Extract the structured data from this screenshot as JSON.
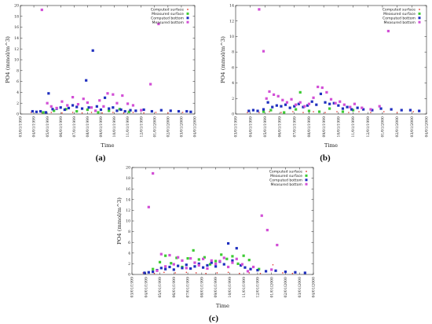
{
  "legend_labels": [
    "Computed surface",
    "Measured surface",
    "Computed bottom",
    "Measured bottom"
  ],
  "colors": {
    "computed_surface": "#e0302a",
    "measured_surface": "#3ecb34",
    "computed_bottom": "#1f2fbf",
    "measured_bottom": "#d24fd6",
    "axis": "#222222"
  },
  "chart_data": [
    {
      "panel": "(a)",
      "type": "scatter",
      "ylabel": "PO4 (mmol/m^3)",
      "xlabel": "Time",
      "x_tick_labels": [
        "03/01/1999",
        "04/01/1999",
        "05/01/1999",
        "06/01/1999",
        "07/01/1999",
        "08/01/1999",
        "09/01/1999",
        "10/01/1999",
        "11/01/1999",
        "12/01/1999",
        "01/01/2000",
        "02/01/2000",
        "03/01/2000",
        "04/01/2000"
      ],
      "xlim": [
        0,
        13
      ],
      "ylim": [
        0,
        20
      ],
      "y_ticks": [
        0,
        2,
        4,
        6,
        8,
        10,
        12,
        14,
        16,
        18,
        20
      ],
      "legend": "top-right",
      "series": [
        {
          "name": "Computed surface",
          "marker": "point",
          "x": [
            0.8,
            1.6,
            2.3,
            3.1,
            3.9,
            4.6,
            5.3,
            6.1,
            6.9,
            7.7,
            8.4,
            9.2,
            10.1,
            11.0,
            12.1
          ],
          "y": [
            0.3,
            0.2,
            0.3,
            0.2,
            0.3,
            0.2,
            0.3,
            0.2,
            0.3,
            0.2,
            0.3,
            0.2,
            0.3,
            0.2,
            0.3
          ]
        },
        {
          "name": "Measured surface",
          "x": [
            1.7,
            2.5,
            3.4,
            4.2,
            5.0,
            5.8,
            6.6,
            7.4,
            8.1
          ],
          "y": [
            0.3,
            0.6,
            0.9,
            0.5,
            0.8,
            0.3,
            0.6,
            0.9,
            0.4
          ]
        },
        {
          "name": "Computed bottom",
          "x": [
            0.9,
            1.2,
            1.5,
            1.9,
            2.1,
            2.4,
            2.7,
            3.0,
            3.3,
            3.6,
            3.9,
            4.2,
            4.6,
            4.9,
            5.1,
            5.4,
            5.7,
            6.0,
            6.3,
            6.6,
            6.9,
            7.2,
            7.5,
            7.8,
            8.2,
            8.6,
            9.2,
            9.8,
            10.5,
            11.2,
            11.8,
            12.4,
            12.7
          ],
          "y": [
            0.5,
            0.4,
            0.5,
            0.3,
            3.8,
            0.9,
            1.0,
            1.2,
            0.8,
            1.1,
            1.6,
            1.3,
            1.0,
            6.2,
            1.2,
            11.7,
            1.4,
            0.8,
            3.0,
            1.0,
            1.2,
            0.6,
            0.8,
            0.5,
            0.7,
            0.6,
            0.8,
            0.5,
            0.7,
            0.6,
            0.5,
            0.5,
            0.4
          ]
        },
        {
          "name": "Measured bottom",
          "x": [
            1.6,
            2.0,
            2.3,
            2.7,
            3.1,
            3.5,
            3.9,
            4.3,
            4.7,
            5.0,
            5.3,
            5.6,
            5.9,
            6.2,
            6.5,
            6.9,
            7.2,
            7.6,
            8.0,
            8.4,
            9.0,
            9.7,
            10.3
          ],
          "y": [
            19.2,
            2.0,
            1.4,
            1.1,
            2.3,
            1.6,
            3.1,
            1.8,
            2.8,
            2.1,
            1.2,
            0.6,
            2.5,
            1.4,
            3.8,
            3.6,
            2.0,
            3.4,
            1.9,
            1.6,
            0.7,
            5.5,
            16.6
          ]
        }
      ]
    },
    {
      "panel": "(b)",
      "type": "scatter",
      "ylabel": "PO4 (mmol/m^3)",
      "xlabel": "Time",
      "x_tick_labels": [
        "03/01/1999",
        "04/01/1999",
        "05/01/1999",
        "06/01/1999",
        "07/01/1999",
        "08/01/1999",
        "09/01/1999",
        "10/01/1999",
        "11/01/1999",
        "12/01/1999",
        "01/01/2000",
        "02/01/2000",
        "03/01/2000",
        "04/01/2000"
      ],
      "xlim": [
        0,
        13
      ],
      "ylim": [
        0,
        14
      ],
      "y_ticks": [
        0,
        2,
        4,
        6,
        8,
        10,
        12,
        14
      ],
      "legend": "top-right",
      "series": [
        {
          "name": "Computed surface",
          "marker": "point",
          "x": [
            0.8,
            1.6,
            2.3,
            3.1,
            3.9,
            4.6,
            5.3,
            6.1,
            6.9,
            7.7,
            8.4,
            9.2,
            10.1,
            11.0,
            12.1
          ],
          "y": [
            0.2,
            0.2,
            0.3,
            0.2,
            0.3,
            0.2,
            0.3,
            0.2,
            0.3,
            0.2,
            0.3,
            0.2,
            0.3,
            0.2,
            0.3
          ]
        },
        {
          "name": "Measured surface",
          "x": [
            1.9,
            2.4,
            3.3,
            4.1,
            4.4,
            5.0,
            5.7,
            6.4,
            7.3,
            8.0
          ],
          "y": [
            0.3,
            0.5,
            0.2,
            0.6,
            2.8,
            0.4,
            0.3,
            0.7,
            0.3,
            0.5
          ]
        },
        {
          "name": "Computed bottom",
          "x": [
            0.9,
            1.2,
            1.5,
            1.9,
            2.2,
            2.5,
            2.8,
            3.1,
            3.4,
            3.7,
            4.0,
            4.3,
            4.6,
            4.9,
            5.2,
            5.5,
            5.8,
            6.1,
            6.4,
            6.7,
            7.0,
            7.3,
            7.6,
            7.9,
            8.3,
            8.7,
            9.3,
            9.9,
            10.6,
            11.3,
            11.9,
            12.5
          ],
          "y": [
            0.4,
            0.5,
            0.4,
            0.6,
            1.5,
            0.9,
            1.1,
            1.0,
            1.2,
            0.8,
            1.0,
            1.3,
            0.9,
            1.1,
            1.6,
            1.2,
            2.6,
            1.5,
            1.3,
            1.4,
            1.1,
            0.7,
            0.9,
            0.6,
            0.8,
            0.6,
            0.5,
            0.7,
            0.6,
            0.5,
            0.5,
            0.4
          ]
        },
        {
          "name": "Measured bottom",
          "x": [
            1.6,
            1.9,
            2.1,
            2.3,
            2.6,
            2.9,
            3.2,
            3.5,
            3.8,
            4.1,
            4.4,
            4.7,
            5.0,
            5.3,
            5.6,
            5.9,
            6.2,
            6.5,
            6.8,
            7.1,
            7.4,
            7.8,
            8.1,
            8.6,
            9.2,
            9.8,
            10.4
          ],
          "y": [
            13.5,
            8.1,
            2.0,
            2.9,
            2.5,
            2.3,
            1.8,
            1.5,
            1.9,
            1.2,
            1.5,
            1.0,
            1.3,
            2.1,
            3.5,
            3.4,
            2.8,
            1.9,
            1.4,
            1.6,
            1.2,
            0.9,
            1.3,
            0.8,
            0.6,
            1.0,
            10.7
          ]
        }
      ]
    },
    {
      "panel": "(c)",
      "type": "scatter",
      "ylabel": "PO4 (mmol/m^3)",
      "xlabel": "Time",
      "x_tick_labels": [
        "03/01/1999",
        "04/01/1999",
        "05/01/1999",
        "06/01/1999",
        "07/01/1999",
        "08/01/1999",
        "09/01/1999",
        "10/01/1999",
        "11/01/1999",
        "12/01/1999",
        "01/01/2000",
        "02/01/2000",
        "03/01/2000",
        "04/01/2000"
      ],
      "xlim": [
        0,
        13
      ],
      "ylim": [
        0,
        20
      ],
      "y_ticks": [
        0,
        2,
        4,
        6,
        8,
        10,
        12,
        14,
        16,
        18,
        20
      ],
      "legend": "top-right",
      "series": [
        {
          "name": "Computed surface",
          "marker": "point",
          "x": [
            0.8,
            1.6,
            2.3,
            3.1,
            3.9,
            4.6,
            5.3,
            6.1,
            6.9,
            7.7,
            8.4,
            9.2,
            10.1,
            10.8,
            11.5
          ],
          "y": [
            0.3,
            0.2,
            0.4,
            0.3,
            0.4,
            0.3,
            0.2,
            0.3,
            0.4,
            0.2,
            0.3,
            0.2,
            1.8,
            0.3,
            0.2
          ]
        },
        {
          "name": "Measured surface",
          "x": [
            1.5,
            2.0,
            2.4,
            2.8,
            3.2,
            3.6,
            4.0,
            4.4,
            4.8,
            5.2,
            5.6,
            6.0,
            6.4,
            6.8,
            7.2,
            7.6,
            8.0,
            8.4,
            9.1
          ],
          "y": [
            1.0,
            2.3,
            3.5,
            2.1,
            3.1,
            1.4,
            3.0,
            4.5,
            2.8,
            3.2,
            1.9,
            2.5,
            3.7,
            2.9,
            3.4,
            2.0,
            3.5,
            2.7,
            1.0
          ]
        },
        {
          "name": "Computed bottom",
          "x": [
            0.9,
            1.2,
            1.5,
            1.8,
            2.1,
            2.4,
            2.7,
            3.0,
            3.3,
            3.6,
            3.9,
            4.2,
            4.5,
            4.8,
            5.1,
            5.4,
            5.7,
            6.0,
            6.3,
            6.6,
            6.9,
            7.2,
            7.5,
            7.8,
            8.1,
            8.5,
            9.0,
            9.6,
            10.3,
            11.0,
            11.7,
            12.4
          ],
          "y": [
            0.3,
            0.4,
            0.5,
            0.8,
            1.2,
            1.0,
            1.4,
            0.9,
            1.6,
            1.2,
            1.8,
            1.1,
            1.5,
            2.0,
            1.3,
            1.7,
            2.2,
            1.5,
            2.4,
            1.9,
            5.8,
            2.6,
            4.9,
            1.7,
            1.3,
            1.0,
            0.8,
            0.6,
            0.7,
            0.5,
            0.4,
            0.3
          ]
        },
        {
          "name": "Measured bottom",
          "x": [
            1.2,
            1.5,
            1.8,
            2.1,
            2.4,
            2.7,
            3.0,
            3.3,
            3.6,
            3.9,
            4.2,
            4.5,
            4.8,
            5.1,
            5.4,
            5.7,
            6.0,
            6.3,
            6.6,
            6.9,
            7.2,
            7.5,
            7.9,
            8.3,
            8.7,
            9.3,
            9.7,
            10.0,
            10.4
          ],
          "y": [
            12.6,
            18.9,
            0.7,
            3.8,
            1.5,
            3.6,
            1.9,
            3.2,
            2.6,
            1.2,
            3.0,
            2.2,
            1.7,
            2.9,
            1.1,
            2.6,
            2.0,
            2.5,
            3.1,
            1.4,
            2.2,
            2.9,
            1.9,
            0.6,
            1.4,
            11.0,
            8.3,
            0.9,
            5.5
          ]
        }
      ]
    }
  ]
}
